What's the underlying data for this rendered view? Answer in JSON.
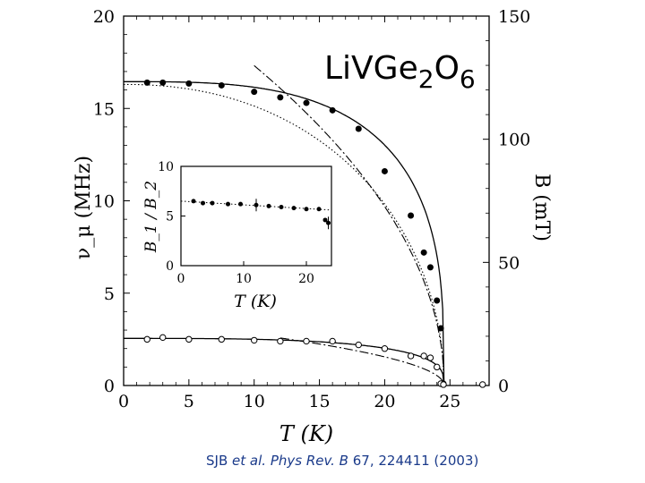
{
  "compound": {
    "base": "LiVGe",
    "sub1": "2",
    "mid": "O",
    "sub2": "6"
  },
  "citation": {
    "author": "SJB",
    "etal": "et al.",
    "journal": "Phys Rev. B",
    "rest": "67, 224411 (2003)"
  },
  "chart_data": [
    {
      "type": "scatter",
      "xlabel": "T  (K)",
      "ylabel": "ν_μ (MHz)",
      "y2label": "B (mT)",
      "xlim": [
        0,
        28
      ],
      "ylim": [
        0,
        20
      ],
      "y2lim": [
        0,
        150
      ],
      "xticks": [
        0,
        5,
        10,
        15,
        20,
        25
      ],
      "yticks": [
        0,
        5,
        10,
        15,
        20
      ],
      "y2ticks": [
        0,
        50,
        100,
        150
      ],
      "grid": false,
      "series": [
        {
          "marker": "filled-circle",
          "x": [
            1.8,
            3.0,
            5.0,
            7.5,
            10.0,
            12.0,
            14.0,
            16.0,
            18.0,
            20.0,
            22.0,
            23.0,
            23.5,
            24.0,
            24.3,
            24.5
          ],
          "y": [
            16.4,
            16.4,
            16.35,
            16.25,
            15.9,
            15.6,
            15.3,
            14.9,
            13.9,
            11.6,
            9.2,
            7.2,
            6.4,
            4.6,
            3.1,
            0.1
          ]
        },
        {
          "marker": "open-circle",
          "x": [
            1.8,
            3.0,
            5.0,
            7.5,
            10.0,
            12.0,
            14.0,
            16.0,
            18.0,
            20.0,
            22.0,
            23.0,
            23.5,
            24.0,
            24.3,
            24.5,
            27.5
          ],
          "y": [
            2.5,
            2.6,
            2.5,
            2.5,
            2.45,
            2.4,
            2.4,
            2.4,
            2.2,
            2.0,
            1.6,
            1.6,
            1.5,
            1.0,
            0.1,
            0.05,
            0.05
          ]
        }
      ]
    },
    {
      "type": "scatter",
      "xlabel": "T  (K)",
      "ylabel": "B_1 / B_2",
      "xlim": [
        0,
        24
      ],
      "ylim": [
        0,
        10
      ],
      "xticks": [
        0,
        10,
        20
      ],
      "yticks": [
        0,
        5,
        10
      ],
      "series": [
        {
          "marker": "filled-circle",
          "x": [
            2.0,
            3.5,
            5.0,
            7.5,
            9.5,
            12.0,
            14.0,
            16.0,
            18.0,
            20.0,
            22.0,
            23.0,
            23.5
          ],
          "y": [
            6.5,
            6.3,
            6.3,
            6.2,
            6.2,
            6.1,
            6.0,
            5.9,
            5.8,
            5.7,
            5.7,
            4.6,
            4.3
          ]
        }
      ]
    }
  ]
}
